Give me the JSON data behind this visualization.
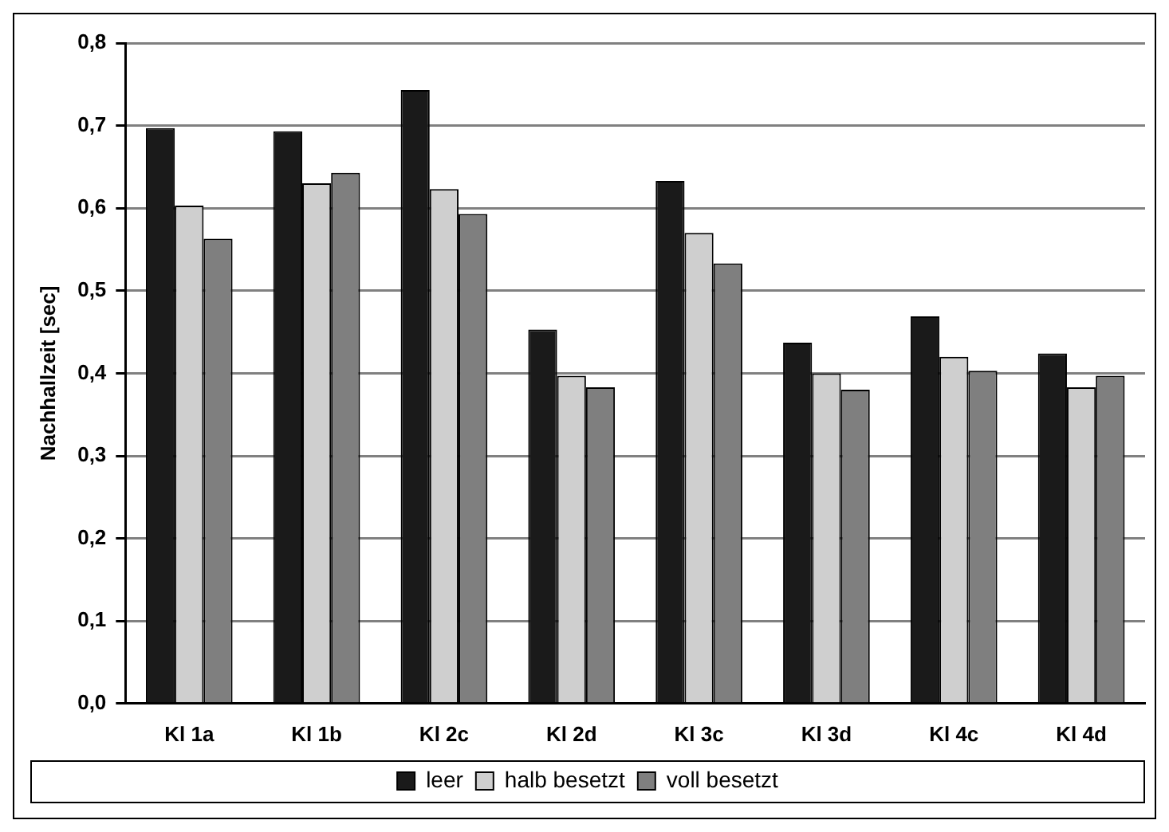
{
  "chart_data": {
    "type": "bar",
    "ylabel": "Nachhallzeit [sec]",
    "categories": [
      "Kl 1a",
      "Kl 1b",
      "Kl 2c",
      "Kl 2d",
      "Kl 3c",
      "Kl 3d",
      "Kl 4c",
      "Kl 4d"
    ],
    "series": [
      {
        "name": "leer",
        "color": "#1a1a1a",
        "values": [
          0.697,
          0.693,
          0.743,
          0.453,
          0.633,
          0.437,
          0.469,
          0.424
        ]
      },
      {
        "name": "halb besetzt",
        "color": "#cfcfcf",
        "values": [
          0.603,
          0.63,
          0.623,
          0.397,
          0.57,
          0.4,
          0.42,
          0.383
        ]
      },
      {
        "name": "voll besetzt",
        "color": "#7f7f7f",
        "values": [
          0.563,
          0.643,
          0.593,
          0.383,
          0.533,
          0.38,
          0.403,
          0.397
        ]
      }
    ],
    "ylim": [
      0,
      0.8
    ],
    "yticks": [
      {
        "value": 0,
        "label": "0,0"
      },
      {
        "value": 0.1,
        "label": "0,1"
      },
      {
        "value": 0.2,
        "label": "0,2"
      },
      {
        "value": 0.3,
        "label": "0,3"
      },
      {
        "value": 0.4,
        "label": "0,4"
      },
      {
        "value": 0.5,
        "label": "0,5"
      },
      {
        "value": 0.6,
        "label": "0,6"
      },
      {
        "value": 0.7,
        "label": "0,7"
      },
      {
        "value": 0.8,
        "label": "0,8"
      }
    ],
    "grid": "y",
    "legend": "bottom"
  }
}
